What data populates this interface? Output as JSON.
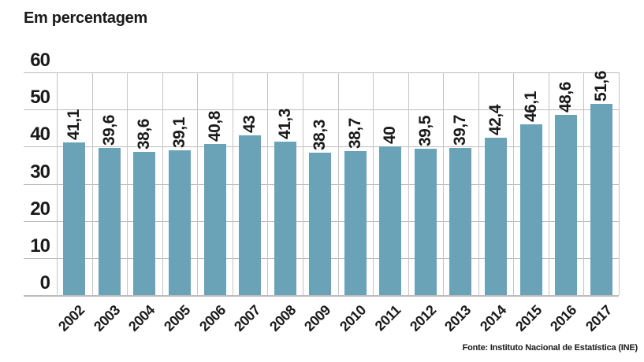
{
  "page": {
    "title": "Em percentagem",
    "source": "Fonte: Instituto Nacional de Estatística (INE)"
  },
  "colors": {
    "bar": "#6aa2b8",
    "grid": "#bcbcbc",
    "column_grid": "#c4c4c4",
    "text": "#1a1a1a",
    "background": "#ffffff"
  },
  "chart_data": {
    "type": "bar",
    "title": "Em percentagem",
    "categories": [
      "2002",
      "2003",
      "2004",
      "2005",
      "2006",
      "2007",
      "2008",
      "2009",
      "2010",
      "2011",
      "2012",
      "2013",
      "2014",
      "2015",
      "2016",
      "2017"
    ],
    "values": [
      41.1,
      39.6,
      38.6,
      39.1,
      40.8,
      43,
      41.3,
      38.3,
      38.7,
      40,
      39.5,
      39.7,
      42.4,
      46.1,
      48.6,
      51.6
    ],
    "value_labels": [
      "41,1",
      "39,6",
      "38,6",
      "39,1",
      "40,8",
      "43",
      "41,3",
      "38,3",
      "38,7",
      "40",
      "39,5",
      "39,7",
      "42,4",
      "46,1",
      "48,6",
      "51,6"
    ],
    "xlabel": "",
    "ylabel": "Em percentagem",
    "ylim": [
      0,
      60
    ],
    "yticks": [
      0,
      10,
      20,
      30,
      40,
      50,
      60
    ],
    "grid": true,
    "legend": false,
    "value_label_orientation": "vertical",
    "x_tick_orientation": "diagonal",
    "source": "Fonte: Instituto Nacional de Estatística (INE)"
  }
}
